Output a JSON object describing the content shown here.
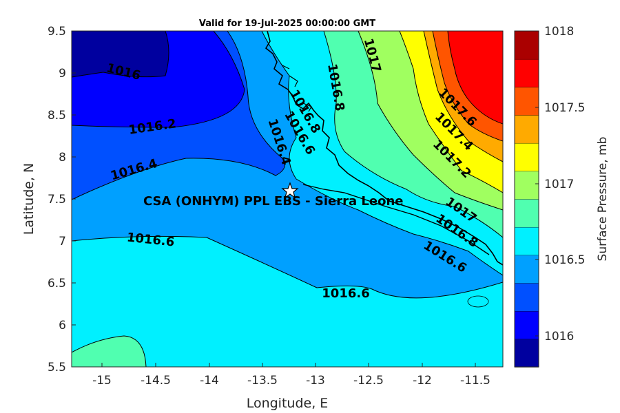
{
  "title": "Valid for 19-Jul-2025 00:00:00 GMT",
  "xlabel": "Longitude, E",
  "ylabel": "Latitude, N",
  "x_ticks": [
    "-15",
    "-14.5",
    "-14",
    "-13.5",
    "-13",
    "-12.5",
    "-12",
    "-11.5"
  ],
  "y_ticks": [
    "9.5",
    "9",
    "8.5",
    "8",
    "7.5",
    "7",
    "6.5",
    "6",
    "5.5"
  ],
  "colorbar": {
    "label": "Surface Pressure, mb",
    "tick_labels": [
      "1018",
      "1017.5",
      "1017",
      "1016.5",
      "1016"
    ],
    "colors": [
      "#00009f",
      "#0000ff",
      "#0050ff",
      "#00a0ff",
      "#00f0ff",
      "#50ffb0",
      "#a0ff60",
      "#ffff00",
      "#ffaa00",
      "#ff5500",
      "#ff0000",
      "#aa0000"
    ]
  },
  "contour_labels": [
    "1016",
    "1016.2",
    "1016.4",
    "1016.6",
    "1016.8",
    "1016.4",
    "1016.6",
    "1016.8",
    "1017",
    "1017.6",
    "1017.4",
    "1017.2",
    "1017",
    "1016.8",
    "1016.6",
    "1016.6"
  ],
  "site": {
    "label": "CSA (ONHYM) PPL EBS  - Sierra Leone",
    "marker": "star-icon"
  },
  "chart_data": {
    "type": "heatmap",
    "title": "Valid for 19-Jul-2025 00:00:00 GMT",
    "xlabel": "Longitude, E",
    "ylabel": "Latitude, N",
    "xlim": [
      -15.25,
      -11.25
    ],
    "ylim": [
      5.5,
      9.5
    ],
    "clim": [
      1015.8,
      1018.2
    ],
    "colorbar_label": "Surface Pressure, mb",
    "contour_levels": [
      1016,
      1016.2,
      1016.4,
      1016.6,
      1016.8,
      1017,
      1017.2,
      1017.4,
      1017.6
    ],
    "site": {
      "label": "CSA (ONHYM) PPL EBS  - Sierra Leone",
      "lon": -13.25,
      "lat": 7.6
    }
  }
}
